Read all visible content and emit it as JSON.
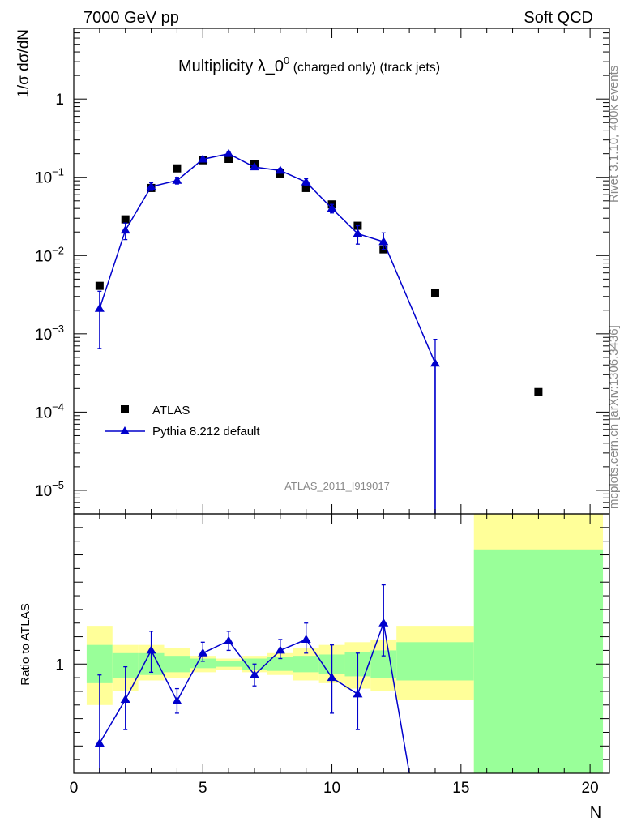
{
  "header": {
    "left": "7000 GeV pp",
    "right": "Soft QCD"
  },
  "side_labels": {
    "rivet": "Rivet 3.1.10,  400k events",
    "mcplots": "mcplots.cern.ch [arXiv:1306.3436]"
  },
  "chart_data": [
    {
      "type": "scatter",
      "title_main": "Multiplicity λ_0",
      "title_sup": "0",
      "title_sub": " (charged only) (track jets)",
      "ylabel": "1/σ dσ/dN",
      "analysis_label": "ATLAS_2011_I919017",
      "yscale": "log",
      "ylim": [
        5e-06,
        8
      ],
      "xlim": [
        0,
        20.75
      ],
      "y_ticks": [
        {
          "value": 1e-05,
          "base": "10",
          "exp": "−5"
        },
        {
          "value": 0.0001,
          "base": "10",
          "exp": "−4"
        },
        {
          "value": 0.001,
          "base": "10",
          "exp": "−3"
        },
        {
          "value": 0.01,
          "base": "10",
          "exp": "−2"
        },
        {
          "value": 0.1,
          "base": "10",
          "exp": "−1"
        },
        {
          "value": 1,
          "base": "1",
          "exp": ""
        }
      ],
      "legend": {
        "placement": "lower-left",
        "entries": [
          {
            "label": "ATLAS",
            "marker": "square",
            "color": "#000000"
          },
          {
            "label": "Pythia 8.212 default",
            "marker": "triangle",
            "color": "#0000cc"
          }
        ]
      },
      "series": [
        {
          "name": "ATLAS",
          "color": "#000000",
          "x": [
            1,
            2,
            3,
            4,
            5,
            6,
            7,
            8,
            9,
            10,
            11,
            12,
            14,
            18
          ],
          "y": [
            0.0041,
            0.029,
            0.073,
            0.13,
            0.165,
            0.172,
            0.148,
            0.112,
            0.073,
            0.045,
            0.024,
            0.012,
            0.0033,
            0.00018
          ]
        },
        {
          "name": "Pythia 8.212 default",
          "color": "#0000cc",
          "x": [
            1,
            2,
            3,
            4,
            5,
            6,
            7,
            8,
            9,
            10,
            11,
            12,
            14
          ],
          "y": [
            0.0021,
            0.021,
            0.076,
            0.091,
            0.17,
            0.2,
            0.135,
            0.122,
            0.087,
            0.04,
            0.019,
            0.015,
            0.00042
          ],
          "y_lo": [
            0.00065,
            0.016,
            0.068,
            0.082,
            0.16,
            0.19,
            0.128,
            0.114,
            0.078,
            0.035,
            0.014,
            0.012,
            4e-06
          ],
          "y_hi": [
            0.0035,
            0.026,
            0.085,
            0.1,
            0.18,
            0.215,
            0.142,
            0.13,
            0.096,
            0.045,
            0.024,
            0.0195,
            0.00085
          ],
          "line_end": {
            "x": 14,
            "y": 4e-06
          }
        }
      ]
    },
    {
      "type": "scatter",
      "ylabel": "Ratio to ATLAS",
      "xlabel": "N",
      "xlim": [
        0,
        20.75
      ],
      "ylim": [
        0.6,
        1.55
      ],
      "x_ticks": [
        0,
        5,
        10,
        15,
        20
      ],
      "y_ticks": [
        {
          "value": 1,
          "label": "1"
        }
      ],
      "bands": [
        {
          "x0": 0.5,
          "x1": 1.5,
          "y_lo": 0.85,
          "y_hi": 1.14,
          "y2_lo": 0.93,
          "y2_hi": 1.07
        },
        {
          "x0": 1.5,
          "x1": 2.5,
          "y_lo": 0.9,
          "y_hi": 1.07,
          "y2_lo": 0.95,
          "y2_hi": 1.04
        },
        {
          "x0": 2.5,
          "x1": 3.5,
          "y_lo": 0.94,
          "y_hi": 1.07,
          "y2_lo": 0.96,
          "y2_hi": 1.04
        },
        {
          "x0": 3.5,
          "x1": 4.5,
          "y_lo": 0.95,
          "y_hi": 1.06,
          "y2_lo": 0.97,
          "y2_hi": 1.03
        },
        {
          "x0": 4.5,
          "x1": 5.5,
          "y_lo": 0.97,
          "y_hi": 1.03,
          "y2_lo": 0.985,
          "y2_hi": 1.02
        },
        {
          "x0": 5.5,
          "x1": 6.5,
          "y_lo": 0.98,
          "y_hi": 1.02,
          "y2_lo": 0.99,
          "y2_hi": 1.01
        },
        {
          "x0": 6.5,
          "x1": 7.5,
          "y_lo": 0.97,
          "y_hi": 1.03,
          "y2_lo": 0.98,
          "y2_hi": 1.02
        },
        {
          "x0": 7.5,
          "x1": 8.5,
          "y_lo": 0.96,
          "y_hi": 1.04,
          "y2_lo": 0.975,
          "y2_hi": 1.025
        },
        {
          "x0": 8.5,
          "x1": 9.5,
          "y_lo": 0.94,
          "y_hi": 1.06,
          "y2_lo": 0.97,
          "y2_hi": 1.03
        },
        {
          "x0": 9.5,
          "x1": 10.5,
          "y_lo": 0.93,
          "y_hi": 1.07,
          "y2_lo": 0.965,
          "y2_hi": 1.035
        },
        {
          "x0": 10.5,
          "x1": 11.5,
          "y_lo": 0.91,
          "y_hi": 1.08,
          "y2_lo": 0.955,
          "y2_hi": 1.045
        },
        {
          "x0": 11.5,
          "x1": 12.5,
          "y_lo": 0.9,
          "y_hi": 1.09,
          "y2_lo": 0.95,
          "y2_hi": 1.05
        },
        {
          "x0": 12.5,
          "x1": 15.5,
          "y_lo": 0.87,
          "y_hi": 1.14,
          "y2_lo": 0.94,
          "y2_hi": 1.08
        },
        {
          "x0": 15.5,
          "x1": 20.5,
          "y_lo": 0.6,
          "y_hi": 1.55,
          "y2_lo": 0.6,
          "y2_hi": 1.42
        }
      ],
      "band_colors": {
        "outer": "#ffff99",
        "inner": "#99ff99"
      },
      "series": [
        {
          "name": "Pythia 8.212 default",
          "color": "#0000cc",
          "x": [
            1,
            2,
            3,
            4,
            5,
            6,
            7,
            8,
            9,
            10,
            11,
            12
          ],
          "y": [
            0.71,
            0.87,
            1.05,
            0.865,
            1.04,
            1.085,
            0.96,
            1.05,
            1.09,
            0.95,
            0.89,
            1.15
          ],
          "y_lo": [
            0.5,
            0.76,
            0.97,
            0.82,
            1.01,
            1.05,
            0.92,
            1.02,
            1.04,
            0.82,
            0.76,
            1.03
          ],
          "y_hi": [
            0.96,
            0.99,
            1.12,
            0.91,
            1.08,
            1.12,
            1.0,
            1.09,
            1.15,
            1.07,
            1.04,
            1.29
          ],
          "tail_to": {
            "x": 13.0,
            "y": 0.6
          }
        }
      ]
    }
  ]
}
